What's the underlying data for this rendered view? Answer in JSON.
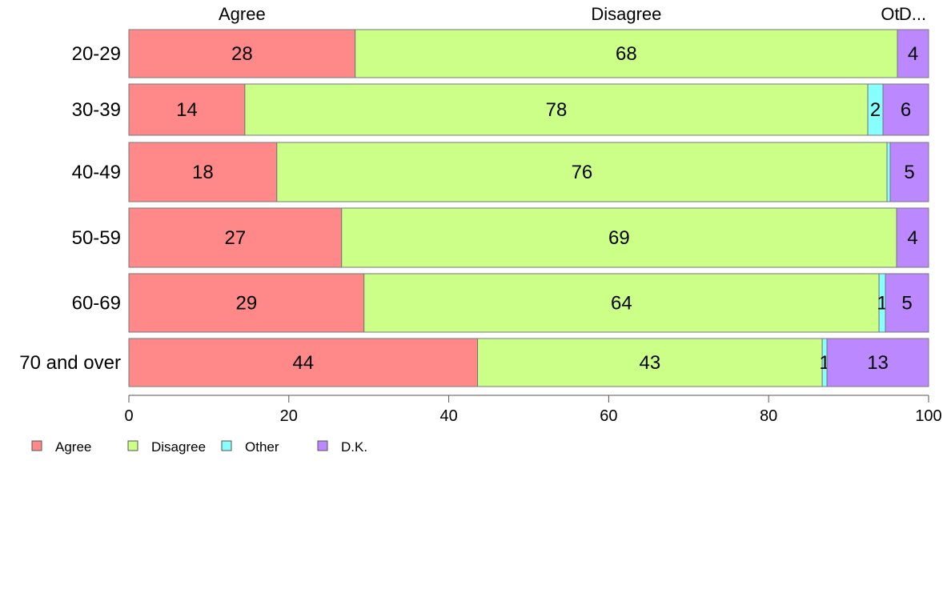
{
  "chart_data": {
    "type": "bar",
    "orientation": "horizontal",
    "stacked": true,
    "categories": [
      "20-29",
      "30-39",
      "40-49",
      "50-59",
      "60-69",
      "70 and over"
    ],
    "series": [
      {
        "name": "Agree",
        "color": "#ff8888",
        "values": [
          28.3,
          14.5,
          18.5,
          26.6,
          29.4,
          43.6
        ]
      },
      {
        "name": "Disagree",
        "color": "#ccff88",
        "values": [
          67.8,
          77.9,
          76.3,
          69.4,
          64.4,
          43.1
        ]
      },
      {
        "name": "Other",
        "color": "#88ffff",
        "values": [
          0,
          1.9,
          0.4,
          0,
          0.8,
          0.6
        ]
      },
      {
        "name": "D.K.",
        "color": "#bb88ff",
        "values": [
          3.9,
          5.7,
          4.8,
          4.0,
          5.4,
          12.7
        ]
      }
    ],
    "segment_labels": [
      [
        "28",
        "68",
        "",
        "4"
      ],
      [
        "14",
        "78",
        "2",
        "6"
      ],
      [
        "18",
        "76",
        "",
        "5"
      ],
      [
        "27",
        "69",
        "",
        "4"
      ],
      [
        "29",
        "64",
        "1",
        "5"
      ],
      [
        "44",
        "43",
        "1",
        "13"
      ]
    ],
    "top_labels": [
      "Agree",
      "Disagree",
      "Ot",
      "D..."
    ],
    "xlim": [
      0,
      100
    ],
    "xticks": [
      "0",
      "20",
      "40",
      "60",
      "80",
      "100"
    ],
    "legend": {
      "position": "bottom-left",
      "entries": [
        "Agree",
        "Disagree",
        "Other",
        "D.K."
      ]
    },
    "grid": false,
    "title": "",
    "xlabel": "",
    "ylabel": ""
  }
}
